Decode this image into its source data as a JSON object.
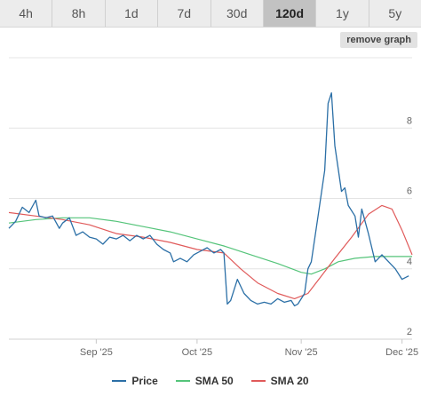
{
  "tabs": [
    {
      "label": "4h",
      "active": false
    },
    {
      "label": "8h",
      "active": false
    },
    {
      "label": "1d",
      "active": false
    },
    {
      "label": "7d",
      "active": false
    },
    {
      "label": "30d",
      "active": false
    },
    {
      "label": "120d",
      "active": true
    },
    {
      "label": "1y",
      "active": false
    },
    {
      "label": "5y",
      "active": false
    }
  ],
  "remove_graph_label": "remove graph",
  "legend": [
    {
      "label": "Price",
      "color": "#2b6fa6"
    },
    {
      "label": "SMA 50",
      "color": "#55c47a"
    },
    {
      "label": "SMA 20",
      "color": "#e05a5a"
    }
  ],
  "chart_data": {
    "type": "line",
    "title": "",
    "xlabel": "",
    "ylabel": "",
    "xlim": [
      "2025-08-06",
      "2025-12-04"
    ],
    "ylim": [
      2,
      10
    ],
    "grid": true,
    "legend_position": "bottom",
    "x_ticks": [
      {
        "date": "2025-09-01",
        "label": "Sep '25"
      },
      {
        "date": "2025-10-01",
        "label": "Oct '25"
      },
      {
        "date": "2025-11-01",
        "label": "Nov '25"
      },
      {
        "date": "2025-12-01",
        "label": "Dec '25"
      }
    ],
    "y_ticks": [
      2,
      4,
      6,
      8
    ],
    "series": [
      {
        "name": "Price",
        "color": "#2b6fa6",
        "points": [
          [
            "2025-08-06",
            5.15
          ],
          [
            "2025-08-08",
            5.35
          ],
          [
            "2025-08-10",
            5.75
          ],
          [
            "2025-08-12",
            5.6
          ],
          [
            "2025-08-14",
            5.95
          ],
          [
            "2025-08-15",
            5.5
          ],
          [
            "2025-08-17",
            5.45
          ],
          [
            "2025-08-19",
            5.5
          ],
          [
            "2025-08-21",
            5.15
          ],
          [
            "2025-08-22",
            5.3
          ],
          [
            "2025-08-24",
            5.45
          ],
          [
            "2025-08-26",
            4.95
          ],
          [
            "2025-08-28",
            5.05
          ],
          [
            "2025-08-30",
            4.9
          ],
          [
            "2025-09-01",
            4.85
          ],
          [
            "2025-09-03",
            4.7
          ],
          [
            "2025-09-05",
            4.9
          ],
          [
            "2025-09-07",
            4.85
          ],
          [
            "2025-09-09",
            4.95
          ],
          [
            "2025-09-11",
            4.8
          ],
          [
            "2025-09-13",
            4.95
          ],
          [
            "2025-09-15",
            4.85
          ],
          [
            "2025-09-17",
            4.95
          ],
          [
            "2025-09-19",
            4.7
          ],
          [
            "2025-09-21",
            4.55
          ],
          [
            "2025-09-23",
            4.45
          ],
          [
            "2025-09-24",
            4.2
          ],
          [
            "2025-09-26",
            4.3
          ],
          [
            "2025-09-28",
            4.2
          ],
          [
            "2025-09-30",
            4.4
          ],
          [
            "2025-10-02",
            4.5
          ],
          [
            "2025-10-04",
            4.6
          ],
          [
            "2025-10-06",
            4.45
          ],
          [
            "2025-10-08",
            4.55
          ],
          [
            "2025-10-09",
            4.45
          ],
          [
            "2025-10-10",
            3.0
          ],
          [
            "2025-10-11",
            3.1
          ],
          [
            "2025-10-13",
            3.7
          ],
          [
            "2025-10-15",
            3.3
          ],
          [
            "2025-10-17",
            3.1
          ],
          [
            "2025-10-19",
            3.0
          ],
          [
            "2025-10-21",
            3.05
          ],
          [
            "2025-10-23",
            3.0
          ],
          [
            "2025-10-25",
            3.15
          ],
          [
            "2025-10-27",
            3.05
          ],
          [
            "2025-10-29",
            3.1
          ],
          [
            "2025-10-30",
            2.95
          ],
          [
            "2025-10-31",
            3.0
          ],
          [
            "2025-11-02",
            3.3
          ],
          [
            "2025-11-03",
            4.0
          ],
          [
            "2025-11-04",
            4.2
          ],
          [
            "2025-11-06",
            5.5
          ],
          [
            "2025-11-08",
            6.8
          ],
          [
            "2025-11-09",
            8.7
          ],
          [
            "2025-11-10",
            9.0
          ],
          [
            "2025-11-11",
            7.5
          ],
          [
            "2025-11-13",
            6.2
          ],
          [
            "2025-11-14",
            6.3
          ],
          [
            "2025-11-15",
            5.8
          ],
          [
            "2025-11-17",
            5.5
          ],
          [
            "2025-11-18",
            4.9
          ],
          [
            "2025-11-19",
            5.7
          ],
          [
            "2025-11-21",
            5.0
          ],
          [
            "2025-11-23",
            4.2
          ],
          [
            "2025-11-25",
            4.4
          ],
          [
            "2025-11-27",
            4.2
          ],
          [
            "2025-11-29",
            4.0
          ],
          [
            "2025-12-01",
            3.7
          ],
          [
            "2025-12-03",
            3.8
          ]
        ]
      },
      {
        "name": "SMA 50",
        "color": "#55c47a",
        "points": [
          [
            "2025-08-06",
            5.3
          ],
          [
            "2025-08-14",
            5.4
          ],
          [
            "2025-08-22",
            5.45
          ],
          [
            "2025-08-30",
            5.45
          ],
          [
            "2025-09-07",
            5.35
          ],
          [
            "2025-09-15",
            5.2
          ],
          [
            "2025-09-23",
            5.05
          ],
          [
            "2025-10-01",
            4.85
          ],
          [
            "2025-10-09",
            4.65
          ],
          [
            "2025-10-17",
            4.4
          ],
          [
            "2025-10-25",
            4.15
          ],
          [
            "2025-11-01",
            3.9
          ],
          [
            "2025-11-04",
            3.85
          ],
          [
            "2025-11-08",
            4.0
          ],
          [
            "2025-11-12",
            4.2
          ],
          [
            "2025-11-17",
            4.3
          ],
          [
            "2025-11-23",
            4.35
          ],
          [
            "2025-11-29",
            4.35
          ],
          [
            "2025-12-04",
            4.35
          ]
        ]
      },
      {
        "name": "SMA 20",
        "color": "#e05a5a",
        "points": [
          [
            "2025-08-06",
            5.6
          ],
          [
            "2025-08-14",
            5.5
          ],
          [
            "2025-08-22",
            5.4
          ],
          [
            "2025-08-30",
            5.25
          ],
          [
            "2025-09-07",
            5.0
          ],
          [
            "2025-09-15",
            4.9
          ],
          [
            "2025-09-23",
            4.75
          ],
          [
            "2025-10-01",
            4.55
          ],
          [
            "2025-10-09",
            4.45
          ],
          [
            "2025-10-14",
            4.0
          ],
          [
            "2025-10-19",
            3.6
          ],
          [
            "2025-10-25",
            3.3
          ],
          [
            "2025-10-30",
            3.15
          ],
          [
            "2025-11-03",
            3.3
          ],
          [
            "2025-11-07",
            3.8
          ],
          [
            "2025-11-11",
            4.3
          ],
          [
            "2025-11-16",
            4.9
          ],
          [
            "2025-11-21",
            5.55
          ],
          [
            "2025-11-25",
            5.8
          ],
          [
            "2025-11-28",
            5.7
          ],
          [
            "2025-12-01",
            5.1
          ],
          [
            "2025-12-04",
            4.4
          ]
        ]
      }
    ]
  }
}
